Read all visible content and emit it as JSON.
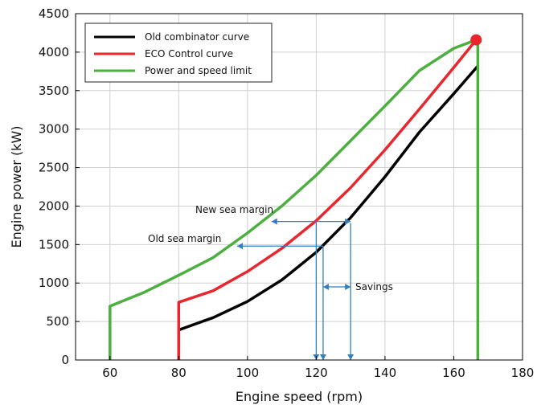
{
  "chart_data": {
    "type": "line",
    "title": "",
    "xlabel": "Engine speed (rpm)",
    "ylabel": "Engine power (kW)",
    "xlim": [
      50,
      180
    ],
    "ylim": [
      0,
      4500
    ],
    "xticks": [
      60,
      80,
      100,
      120,
      140,
      160,
      180
    ],
    "yticks": [
      0,
      500,
      1000,
      1500,
      2000,
      2500,
      3000,
      3500,
      4000,
      4500
    ],
    "grid": true,
    "legend_position": "top-left",
    "series": [
      {
        "name": "Old combinator curve",
        "color": "#000000",
        "points": [
          [
            80,
            0
          ],
          [
            80,
            390
          ],
          [
            90,
            550
          ],
          [
            100,
            760
          ],
          [
            110,
            1040
          ],
          [
            120,
            1400
          ],
          [
            130,
            1850
          ],
          [
            140,
            2380
          ],
          [
            150,
            2960
          ],
          [
            160,
            3460
          ],
          [
            167,
            3820
          ]
        ]
      },
      {
        "name": "ECO Control curve",
        "color": "#e8262d",
        "points": [
          [
            80,
            0
          ],
          [
            80,
            750
          ],
          [
            90,
            900
          ],
          [
            100,
            1150
          ],
          [
            110,
            1450
          ],
          [
            120,
            1810
          ],
          [
            130,
            2240
          ],
          [
            140,
            2730
          ],
          [
            150,
            3260
          ],
          [
            160,
            3800
          ],
          [
            166.5,
            4160
          ]
        ]
      },
      {
        "name": "Power and speed limit",
        "color": "#4caf3f",
        "points": [
          [
            60,
            0
          ],
          [
            60,
            700
          ],
          [
            70,
            880
          ],
          [
            80,
            1100
          ],
          [
            90,
            1330
          ],
          [
            100,
            1650
          ],
          [
            110,
            2000
          ],
          [
            120,
            2400
          ],
          [
            130,
            2850
          ],
          [
            140,
            3300
          ],
          [
            150,
            3760
          ],
          [
            160,
            4050
          ],
          [
            166.5,
            4160
          ],
          [
            167,
            4100
          ],
          [
            167,
            0
          ]
        ]
      }
    ],
    "marker": {
      "x": 166.5,
      "y": 4160,
      "color": "#e8262d"
    },
    "annotations": [
      {
        "text": "New sea margin",
        "arrows": [
          {
            "from": [
              120,
              1800
            ],
            "to": [
              107,
              1800
            ]
          },
          {
            "from": [
              120,
              1800
            ],
            "to": [
              130,
              1800
            ]
          }
        ]
      },
      {
        "text": "Old sea margin",
        "arrows": [
          {
            "from": [
              122,
              1480
            ],
            "to": [
              97,
              1480
            ]
          }
        ]
      },
      {
        "text": "Savings",
        "arrows": [
          {
            "from": [
              126,
              950
            ],
            "to": [
              122,
              950
            ]
          },
          {
            "from": [
              126,
              950
            ],
            "to": [
              130,
              950
            ]
          }
        ]
      }
    ],
    "guide_lines": [
      {
        "x": 120,
        "y_top": 1800
      },
      {
        "x": 122,
        "y_top": 1480
      },
      {
        "x": 130,
        "y_top": 1780
      }
    ]
  },
  "colors": {
    "annotation": "#2f7fc1",
    "grid": "#d0d0d0",
    "axis": "#000000"
  }
}
